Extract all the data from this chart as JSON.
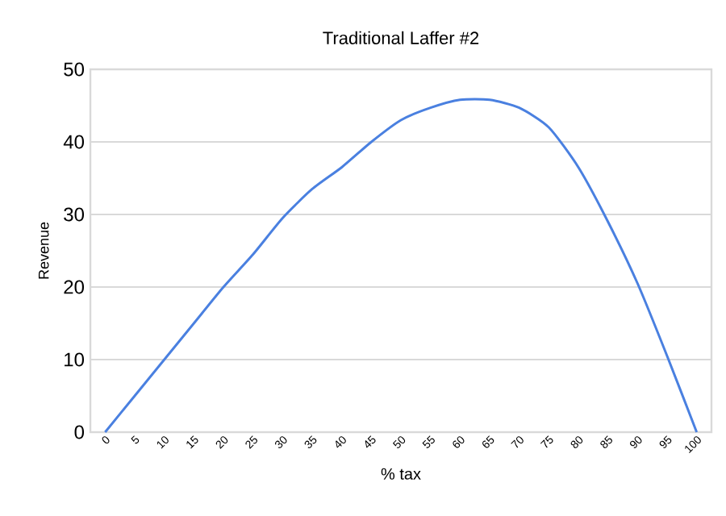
{
  "chart_data": {
    "type": "line",
    "title": "Traditional Laffer #2",
    "xlabel": "% tax",
    "ylabel": "Revenue",
    "categories": [
      "0",
      "5",
      "10",
      "15",
      "20",
      "25",
      "30",
      "35",
      "40",
      "45",
      "50",
      "55",
      "60",
      "65",
      "70",
      "75",
      "80",
      "85",
      "90",
      "95",
      "100"
    ],
    "series": [
      {
        "color": "#4a80e0",
        "values": [
          0,
          5,
          10,
          15,
          20,
          24.5,
          29.5,
          33.5,
          36.5,
          40,
          43,
          44.7,
          45.8,
          45.8,
          44.7,
          42,
          36.5,
          29,
          20.5,
          10.5,
          0
        ]
      }
    ],
    "ylim": [
      0,
      50
    ],
    "yticks": [
      0,
      10,
      20,
      30,
      40,
      50
    ],
    "grid": "y",
    "marker": "none",
    "line_style": "solid"
  }
}
